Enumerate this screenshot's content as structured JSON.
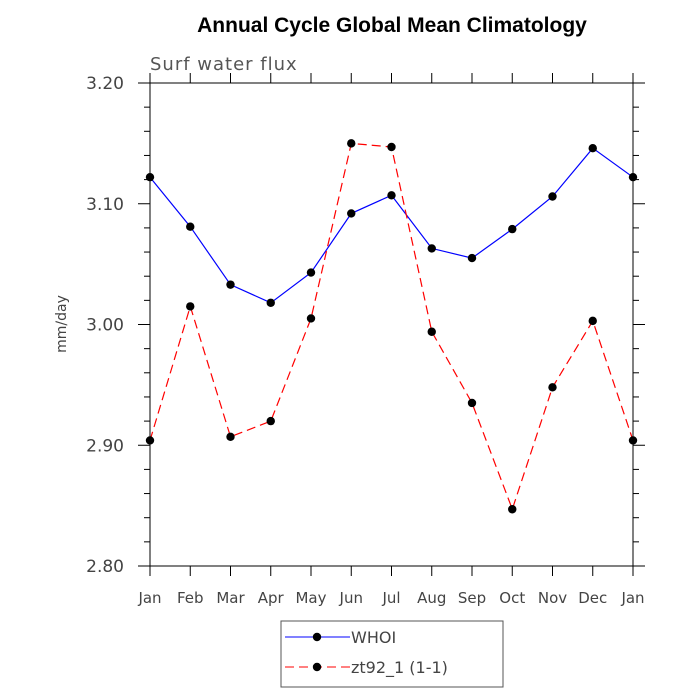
{
  "chart_data": {
    "type": "line",
    "title": "Annual Cycle Global Mean Climatology",
    "subtitle": "Surf water flux",
    "xlabel": "",
    "ylabel": "mm/day",
    "categories": [
      "Jan",
      "Feb",
      "Mar",
      "Apr",
      "May",
      "Jun",
      "Jul",
      "Aug",
      "Sep",
      "Oct",
      "Nov",
      "Dec",
      "Jan"
    ],
    "ylim": [
      2.8,
      3.2
    ],
    "yticks": [
      2.8,
      2.9,
      3.0,
      3.1,
      3.2
    ],
    "ytick_labels": [
      "2.80",
      "2.90",
      "3.00",
      "3.10",
      "3.20"
    ],
    "grid": false,
    "legend_position": "bottom-center",
    "series": [
      {
        "name": "WHOI",
        "color": "#0000ff",
        "line_style": "solid",
        "marker": "circle",
        "values": [
          3.122,
          3.081,
          3.033,
          3.018,
          3.043,
          3.092,
          3.107,
          3.063,
          3.055,
          3.079,
          3.106,
          3.146,
          3.122
        ]
      },
      {
        "name": "zt92_1 (1-1)",
        "color": "#ff0000",
        "line_style": "dashed",
        "marker": "circle",
        "values": [
          2.904,
          3.015,
          2.907,
          2.92,
          3.005,
          3.15,
          3.147,
          2.994,
          2.935,
          2.847,
          2.948,
          3.003,
          2.904
        ]
      }
    ]
  }
}
